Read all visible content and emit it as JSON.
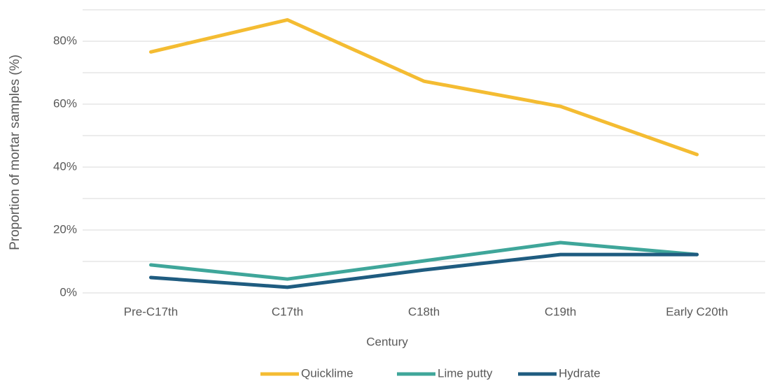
{
  "chart_data": {
    "type": "line",
    "x_label": "Century",
    "y_label": "Proportion of mortar samples (%)",
    "categories": [
      "Pre-C17th",
      "C17th",
      "C18th",
      "C19th",
      "Early C20th"
    ],
    "series": [
      {
        "name": "Quicklime",
        "color": "#f4bc32",
        "values": [
          76.6,
          86.8,
          67.3,
          59.3,
          44.0
        ]
      },
      {
        "name": "Lime putty",
        "color": "#3fa69a",
        "values": [
          8.9,
          4.4,
          10.2,
          16.0,
          12.2
        ]
      },
      {
        "name": "Hydrate",
        "color": "#1f5c80",
        "values": [
          4.9,
          1.8,
          7.3,
          12.2,
          12.2
        ]
      }
    ],
    "ylim": [
      0,
      90
    ],
    "yticks": [
      {
        "value": 0,
        "label": "0%"
      },
      {
        "value": 20,
        "label": "20%"
      },
      {
        "value": 40,
        "label": "40%"
      },
      {
        "value": 60,
        "label": "60%"
      },
      {
        "value": 80,
        "label": "80%"
      }
    ],
    "minor_yticks": [
      10,
      30,
      50,
      70,
      90
    ],
    "grid": true,
    "legend": "bottom"
  }
}
